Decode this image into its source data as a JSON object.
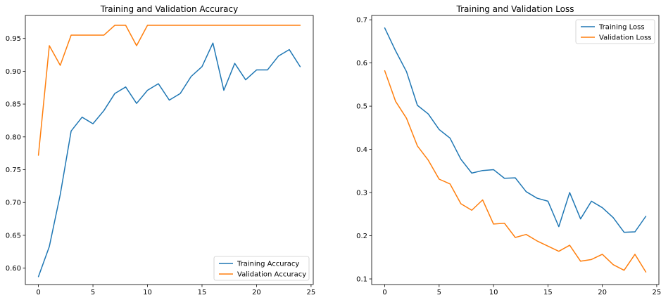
{
  "chart_data": [
    {
      "type": "line",
      "title": "Training and Validation Accuracy",
      "xlabel": "",
      "ylabel": "",
      "xlim": [
        -1.2,
        25.2
      ],
      "ylim": [
        0.575,
        0.985
      ],
      "xticks": [
        0,
        5,
        10,
        15,
        20,
        25
      ],
      "yticks": [
        0.6,
        0.65,
        0.7,
        0.75,
        0.8,
        0.85,
        0.9,
        0.95
      ],
      "ytick_decimals": 2,
      "legend": {
        "location": "lower-right"
      },
      "grid": false,
      "x": [
        0,
        1,
        2,
        3,
        4,
        5,
        6,
        7,
        8,
        9,
        10,
        11,
        12,
        13,
        14,
        15,
        16,
        17,
        18,
        19,
        20,
        21,
        22,
        23,
        24
      ],
      "series": [
        {
          "name": "Training Accuracy",
          "color": "#1f77b4",
          "values": [
            0.587,
            0.633,
            0.712,
            0.809,
            0.83,
            0.82,
            0.84,
            0.866,
            0.876,
            0.851,
            0.871,
            0.881,
            0.856,
            0.866,
            0.892,
            0.907,
            0.943,
            0.871,
            0.912,
            0.887,
            0.902,
            0.902,
            0.923,
            0.933,
            0.907
          ]
        },
        {
          "name": "Validation Accuracy",
          "color": "#ff7f0e",
          "values": [
            0.772,
            0.939,
            0.909,
            0.955,
            0.955,
            0.955,
            0.955,
            0.97,
            0.97,
            0.939,
            0.97,
            0.97,
            0.97,
            0.97,
            0.97,
            0.97,
            0.97,
            0.97,
            0.97,
            0.97,
            0.97,
            0.97,
            0.97,
            0.97,
            0.97
          ]
        }
      ]
    },
    {
      "type": "line",
      "title": "Training and Validation Loss",
      "xlabel": "",
      "ylabel": "",
      "xlim": [
        -1.2,
        25.2
      ],
      "ylim": [
        0.087,
        0.71
      ],
      "xticks": [
        0,
        5,
        10,
        15,
        20,
        25
      ],
      "yticks": [
        0.1,
        0.2,
        0.3,
        0.4,
        0.5,
        0.6,
        0.7
      ],
      "ytick_decimals": 1,
      "legend": {
        "location": "upper-right"
      },
      "grid": false,
      "x": [
        0,
        1,
        2,
        3,
        4,
        5,
        6,
        7,
        8,
        9,
        10,
        11,
        12,
        13,
        14,
        15,
        16,
        17,
        18,
        19,
        20,
        21,
        22,
        23,
        24
      ],
      "series": [
        {
          "name": "Training Loss",
          "color": "#1f77b4",
          "values": [
            0.681,
            0.628,
            0.58,
            0.502,
            0.482,
            0.446,
            0.426,
            0.377,
            0.345,
            0.351,
            0.353,
            0.333,
            0.334,
            0.302,
            0.287,
            0.28,
            0.221,
            0.3,
            0.239,
            0.28,
            0.265,
            0.242,
            0.208,
            0.209,
            0.245
          ]
        },
        {
          "name": "Validation Loss",
          "color": "#ff7f0e",
          "values": [
            0.582,
            0.511,
            0.472,
            0.408,
            0.375,
            0.331,
            0.32,
            0.274,
            0.259,
            0.283,
            0.227,
            0.229,
            0.196,
            0.203,
            0.188,
            0.176,
            0.164,
            0.178,
            0.141,
            0.145,
            0.157,
            0.133,
            0.12,
            0.157,
            0.116
          ]
        }
      ]
    }
  ]
}
